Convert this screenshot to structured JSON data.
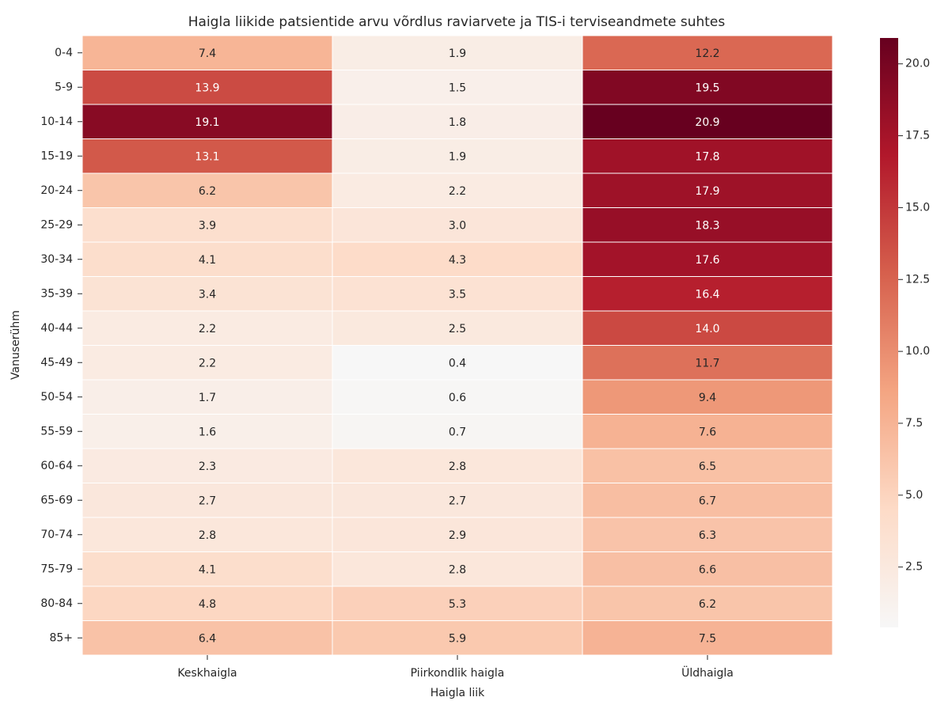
{
  "chart_data": {
    "type": "heatmap",
    "title": "Haigla liikide patsientide arvu võrdlus raviarvete ja TIS-i terviseandmete suhtes",
    "x_label": "Haigla liik",
    "y_label": "Vanuserühm",
    "x": [
      "Keskhaigla",
      "Piirkondlik haigla",
      "Üldhaigla"
    ],
    "y": [
      "0-4",
      "5-9",
      "10-14",
      "15-19",
      "20-24",
      "25-29",
      "30-34",
      "35-39",
      "40-44",
      "45-49",
      "50-54",
      "55-59",
      "60-64",
      "65-69",
      "70-74",
      "75-79",
      "80-84",
      "85+"
    ],
    "values": [
      [
        7.4,
        1.9,
        12.2
      ],
      [
        13.9,
        1.5,
        19.5
      ],
      [
        19.1,
        1.8,
        20.9
      ],
      [
        13.1,
        1.9,
        17.8
      ],
      [
        6.2,
        2.2,
        17.9
      ],
      [
        3.9,
        3.0,
        18.3
      ],
      [
        4.1,
        4.3,
        17.6
      ],
      [
        3.4,
        3.5,
        16.4
      ],
      [
        2.2,
        2.5,
        14.0
      ],
      [
        2.2,
        0.4,
        11.7
      ],
      [
        1.7,
        0.6,
        9.4
      ],
      [
        1.6,
        0.7,
        7.6
      ],
      [
        2.3,
        2.8,
        6.5
      ],
      [
        2.7,
        2.7,
        6.7
      ],
      [
        2.8,
        2.9,
        6.3
      ],
      [
        4.1,
        2.8,
        6.6
      ],
      [
        4.8,
        5.3,
        6.2
      ],
      [
        6.4,
        5.9,
        7.5
      ]
    ],
    "value_labels": [
      [
        "7.4",
        "1.9",
        "12.2"
      ],
      [
        "13.9",
        "1.5",
        "19.5"
      ],
      [
        "19.1",
        "1.8",
        "20.9"
      ],
      [
        "13.1",
        "1.9",
        "17.8"
      ],
      [
        "6.2",
        "2.2",
        "17.9"
      ],
      [
        "3.9",
        "3.0",
        "18.3"
      ],
      [
        "4.1",
        "4.3",
        "17.6"
      ],
      [
        "3.4",
        "3.5",
        "16.4"
      ],
      [
        "2.2",
        "2.5",
        "14.0"
      ],
      [
        "2.2",
        "0.4",
        "11.7"
      ],
      [
        "1.7",
        "0.6",
        "9.4"
      ],
      [
        "1.6",
        "0.7",
        "7.6"
      ],
      [
        "2.3",
        "2.8",
        "6.5"
      ],
      [
        "2.7",
        "2.7",
        "6.7"
      ],
      [
        "2.8",
        "2.9",
        "6.3"
      ],
      [
        "4.1",
        "2.8",
        "6.6"
      ],
      [
        "4.8",
        "5.3",
        "6.2"
      ],
      [
        "6.4",
        "5.9",
        "7.5"
      ]
    ],
    "clim": [
      0.4,
      20.9
    ],
    "colorbar_ticks": [
      2.5,
      {
        "value": 5,
        "label": "5.0"
      },
      7.5,
      {
        "value": 10,
        "label": "10.0"
      },
      12.5,
      {
        "value": 15,
        "label": "15.0"
      },
      17.5,
      {
        "value": 20,
        "label": "20.0"
      }
    ],
    "colors": [
      "#f7f7f7",
      "#fddbc7",
      "#f4a582",
      "#d6604d",
      "#b2182b",
      "#67001f"
    ]
  }
}
